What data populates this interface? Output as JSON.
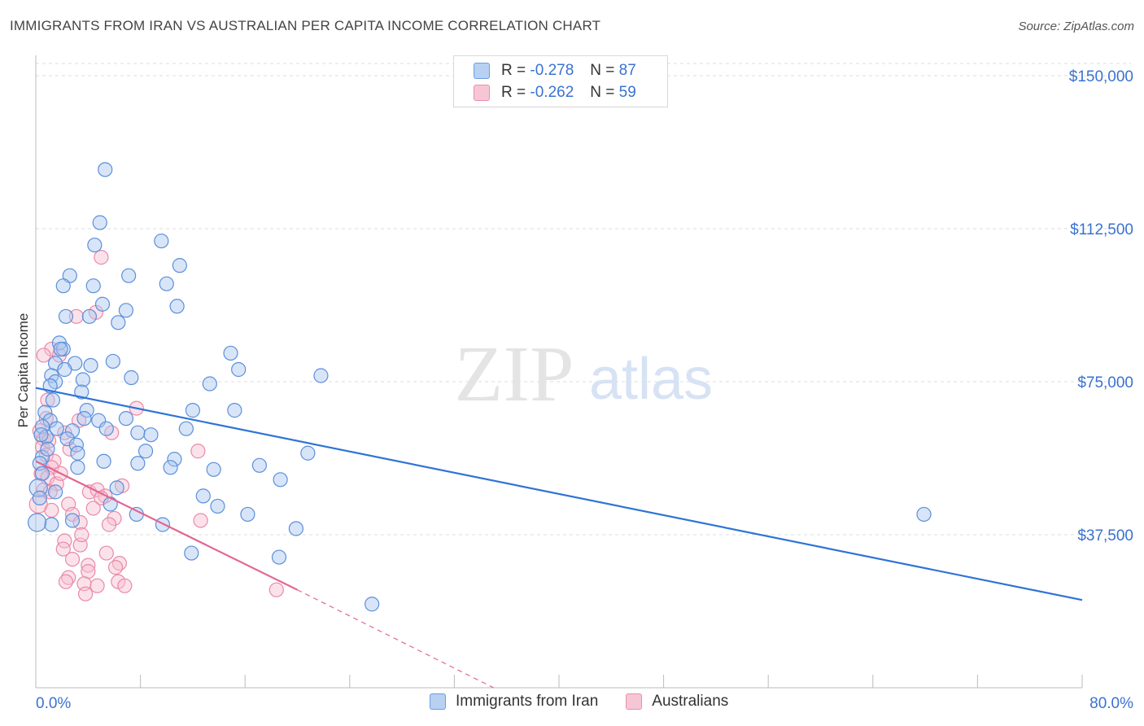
{
  "title": "IMMIGRANTS FROM IRAN VS AUSTRALIAN PER CAPITA INCOME CORRELATION CHART",
  "source": "Source: ZipAtlas.com",
  "watermark": {
    "zip": "ZIP",
    "atlas": "atlas"
  },
  "legend": {
    "r_label": "R =",
    "n_label": "N =",
    "items": [
      {
        "r": "-0.278",
        "n": "87"
      },
      {
        "r": "-0.262",
        "n": "59"
      }
    ]
  },
  "bottom_legend": [
    "Immigrants from Iran",
    "Australians"
  ],
  "colors": {
    "blue_fill": "#a9c6ef",
    "blue_stroke": "#5b8fdb",
    "blue_line": "#2f73d6",
    "pink_fill": "#f6bfd0",
    "pink_stroke": "#e98aa8",
    "pink_line": "#e4658f",
    "axis_text": "#3a72d0",
    "grid": "#dddddd"
  },
  "chart_data": {
    "type": "scatter",
    "title": "IMMIGRANTS FROM IRAN VS AUSTRALIAN PER CAPITA INCOME CORRELATION CHART",
    "xlabel": "",
    "ylabel": "Per Capita Income",
    "xlim": [
      0,
      80
    ],
    "ylim": [
      0,
      153000
    ],
    "x_tick_labels": [
      "0.0%",
      "80.0%"
    ],
    "y_ticks": [
      37500,
      75000,
      112500,
      150000
    ],
    "y_tick_labels": [
      "$37,500",
      "$75,000",
      "$112,500",
      "$150,000"
    ],
    "grid": true,
    "series": [
      {
        "name": "Immigrants from Iran",
        "color": "#5b8fdb",
        "R": -0.278,
        "N": 87,
        "trend": {
          "x": [
            0,
            80
          ],
          "y": [
            73500,
            21500
          ],
          "style": "solid"
        },
        "points": [
          [
            5.3,
            127000
          ],
          [
            4.9,
            114000
          ],
          [
            4.5,
            108500
          ],
          [
            9.6,
            109500
          ],
          [
            11.0,
            103500
          ],
          [
            2.6,
            101000
          ],
          [
            7.1,
            101000
          ],
          [
            2.1,
            98500
          ],
          [
            4.4,
            98500
          ],
          [
            10.0,
            99000
          ],
          [
            5.1,
            94000
          ],
          [
            10.8,
            93500
          ],
          [
            6.9,
            92500
          ],
          [
            2.3,
            91000
          ],
          [
            4.1,
            91000
          ],
          [
            6.3,
            89500
          ],
          [
            1.8,
            84500
          ],
          [
            2.1,
            83000
          ],
          [
            14.9,
            82000
          ],
          [
            3.0,
            79500
          ],
          [
            4.2,
            79000
          ],
          [
            5.9,
            80000
          ],
          [
            1.5,
            79500
          ],
          [
            15.5,
            78000
          ],
          [
            21.8,
            76500
          ],
          [
            1.2,
            76500
          ],
          [
            1.5,
            75000
          ],
          [
            3.6,
            75500
          ],
          [
            7.3,
            76000
          ],
          [
            13.3,
            74500
          ],
          [
            3.5,
            72500
          ],
          [
            1.1,
            74000
          ],
          [
            1.3,
            70500
          ],
          [
            0.7,
            67500
          ],
          [
            3.9,
            68000
          ],
          [
            12.0,
            68000
          ],
          [
            15.2,
            68000
          ],
          [
            4.8,
            65500
          ],
          [
            6.9,
            66000
          ],
          [
            1.1,
            65500
          ],
          [
            0.5,
            64000
          ],
          [
            2.8,
            63000
          ],
          [
            5.4,
            63500
          ],
          [
            7.8,
            62500
          ],
          [
            8.8,
            62000
          ],
          [
            11.5,
            63500
          ],
          [
            0.8,
            61500
          ],
          [
            2.4,
            61000
          ],
          [
            1.6,
            63500
          ],
          [
            3.1,
            59500
          ],
          [
            0.5,
            56500
          ],
          [
            3.2,
            57500
          ],
          [
            8.4,
            58000
          ],
          [
            20.8,
            57500
          ],
          [
            5.2,
            55500
          ],
          [
            10.6,
            56000
          ],
          [
            0.3,
            55000
          ],
          [
            7.8,
            55000
          ],
          [
            10.3,
            54000
          ],
          [
            13.6,
            53500
          ],
          [
            17.1,
            54500
          ],
          [
            3.2,
            54000
          ],
          [
            0.5,
            52500
          ],
          [
            18.7,
            51000
          ],
          [
            0.2,
            49000
          ],
          [
            1.5,
            48000
          ],
          [
            12.8,
            47000
          ],
          [
            0.3,
            46500
          ],
          [
            5.7,
            45000
          ],
          [
            13.9,
            44500
          ],
          [
            7.7,
            42500
          ],
          [
            16.2,
            42500
          ],
          [
            2.8,
            41000
          ],
          [
            9.7,
            40000
          ],
          [
            1.2,
            40000
          ],
          [
            19.9,
            39000
          ],
          [
            0.1,
            40500
          ],
          [
            11.9,
            33000
          ],
          [
            18.6,
            32000
          ],
          [
            25.7,
            20500
          ],
          [
            67.9,
            42500
          ],
          [
            2.2,
            78000
          ],
          [
            0.9,
            58500
          ],
          [
            6.2,
            49000
          ],
          [
            3.7,
            66000
          ],
          [
            1.9,
            83000
          ],
          [
            0.4,
            62000
          ]
        ]
      },
      {
        "name": "Australians",
        "color": "#e98aa8",
        "R": -0.262,
        "N": 59,
        "trend": {
          "x": [
            0,
            20
          ],
          "y": [
            55500,
            24000
          ],
          "style": "solid",
          "extended_x": [
            20,
            35
          ],
          "extended_y": [
            24000,
            0
          ]
        },
        "points": [
          [
            5.0,
            105500
          ],
          [
            4.6,
            92000
          ],
          [
            3.1,
            91000
          ],
          [
            1.2,
            83000
          ],
          [
            0.6,
            81500
          ],
          [
            1.8,
            81500
          ],
          [
            0.9,
            70500
          ],
          [
            7.7,
            68500
          ],
          [
            0.3,
            63000
          ],
          [
            0.6,
            61000
          ],
          [
            3.3,
            65500
          ],
          [
            2.2,
            62500
          ],
          [
            5.8,
            62500
          ],
          [
            0.5,
            59000
          ],
          [
            2.6,
            58500
          ],
          [
            12.4,
            58000
          ],
          [
            0.8,
            57000
          ],
          [
            1.4,
            55500
          ],
          [
            1.2,
            54000
          ],
          [
            0.4,
            52500
          ],
          [
            0.9,
            51500
          ],
          [
            1.6,
            50000
          ],
          [
            6.6,
            49500
          ],
          [
            0.6,
            48500
          ],
          [
            1.1,
            48000
          ],
          [
            4.1,
            48000
          ],
          [
            4.7,
            48500
          ],
          [
            5.3,
            47000
          ],
          [
            2.5,
            45000
          ],
          [
            5.0,
            46500
          ],
          [
            1.2,
            43500
          ],
          [
            2.8,
            42500
          ],
          [
            3.4,
            40500
          ],
          [
            6.0,
            41500
          ],
          [
            12.6,
            41000
          ],
          [
            2.2,
            36000
          ],
          [
            3.4,
            35000
          ],
          [
            5.4,
            33000
          ],
          [
            2.1,
            34000
          ],
          [
            4.0,
            30000
          ],
          [
            6.4,
            30500
          ],
          [
            6.1,
            29500
          ],
          [
            2.5,
            27000
          ],
          [
            4.0,
            28500
          ],
          [
            2.3,
            26000
          ],
          [
            3.7,
            25500
          ],
          [
            6.3,
            26000
          ],
          [
            4.7,
            25000
          ],
          [
            6.8,
            25000
          ],
          [
            3.8,
            23000
          ],
          [
            18.4,
            24000
          ],
          [
            1.0,
            60500
          ],
          [
            0.2,
            45000
          ],
          [
            2.8,
            31500
          ],
          [
            5.6,
            40000
          ],
          [
            0.8,
            66000
          ],
          [
            3.5,
            37500
          ],
          [
            1.9,
            52500
          ],
          [
            4.4,
            44000
          ]
        ]
      }
    ]
  }
}
